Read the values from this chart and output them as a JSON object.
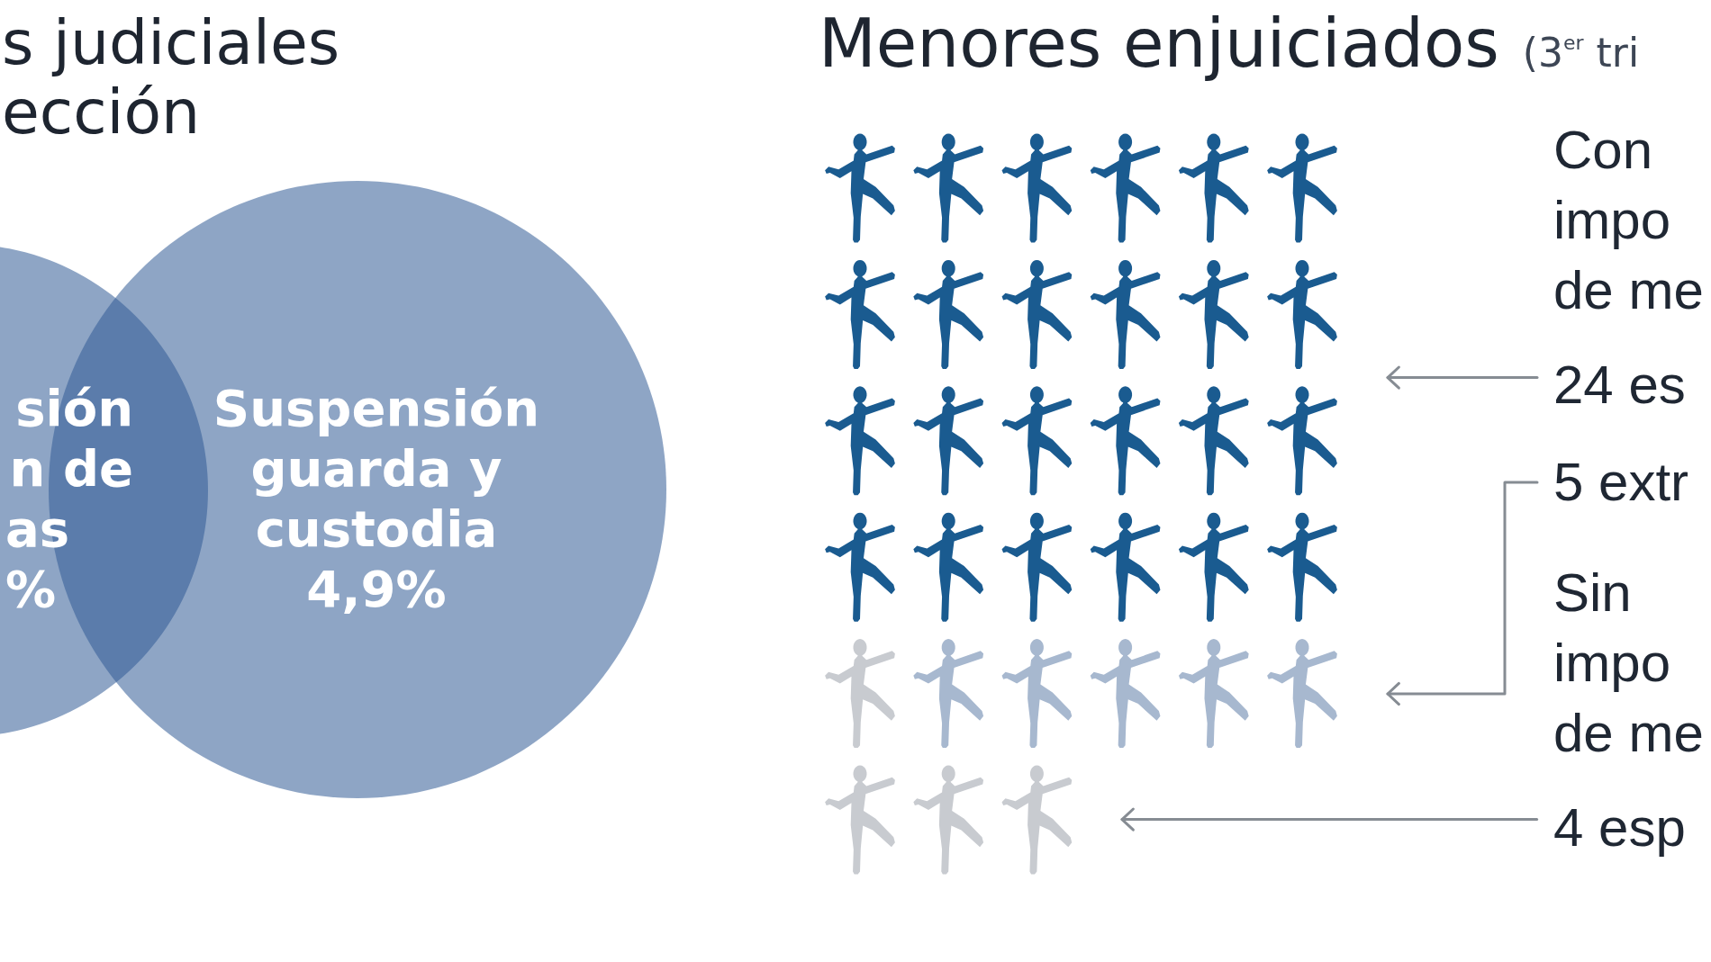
{
  "chart_data": [
    {
      "type": "other",
      "title": "s judiciales\nección",
      "categories": [
        "sión\nn de\nas\n%",
        "Suspensión\nguarda y\ncustodia\n4,9%"
      ],
      "colors": [
        "#8ea5c5",
        "#8ea5c5"
      ]
    },
    {
      "type": "other",
      "title": "Menores enjuiciados",
      "subtitle": "(3$^{er}$ tri",
      "categories": [
        "es",
        "extr",
        "esp"
      ],
      "values": [
        24,
        5,
        4
      ],
      "data_labels": true,
      "colors": [
        "#1a5b90",
        "#a7b8cf",
        "#c8cbd0"
      ],
      "annotations": [
        "Con\nimpo\nde me",
        "Sin\nimpo\nde me"
      ]
    }
  ]
}
